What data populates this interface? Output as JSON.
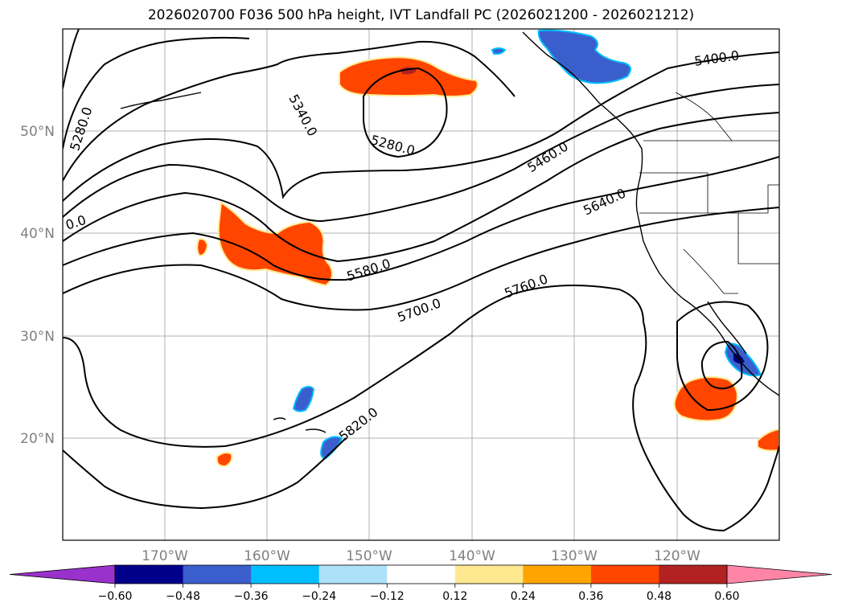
{
  "title": "2026020700 F036 500 hPa height, IVT Landfall PC (2026021200 - 2026021212)",
  "lat_labels": [
    "50°N",
    "40°N",
    "30°N",
    "20°N"
  ],
  "lon_labels": [
    "170°W",
    "160°W",
    "150°W",
    "140°W",
    "130°W",
    "120°W"
  ],
  "contour_labels": [
    "5280.0",
    "5340.0",
    "5280.0",
    "5400.0",
    "5460.0",
    "5640.0",
    "0.0",
    "5580.0",
    "5700.0",
    "5760.0",
    "5820.0"
  ],
  "colorbar": {
    "ticks": [
      "−0.60",
      "−0.48",
      "−0.36",
      "−0.24",
      "−0.12",
      "0.12",
      "0.24",
      "0.36",
      "0.48",
      "0.60"
    ],
    "colors": [
      "#9932CC",
      "#00008B",
      "#3A5FCD",
      "#00BFFF",
      "#ADE1FA",
      "#FFFFFF",
      "#FFE990",
      "#FFA500",
      "#FF4500",
      "#B22222",
      "#FF85A7"
    ]
  }
}
